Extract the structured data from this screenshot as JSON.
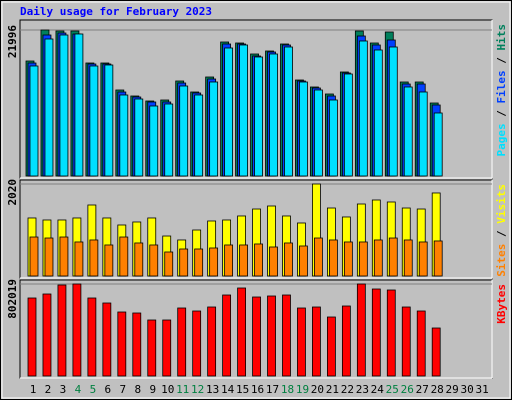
{
  "title": "Daily usage for February 2023",
  "chart_data": [
    {
      "type": "bar",
      "legend_separator": " / ",
      "series": [
        {
          "name": "Pages",
          "color": "#00e0ff",
          "values": [
            16573,
            20640,
            21243,
            21394,
            16573,
            16723,
            12204,
            11601,
            10546,
            10848,
            13559,
            12204,
            14162,
            19285,
            19737,
            17929,
            18381,
            19435,
            14162,
            12957,
            11450,
            15367,
            20339,
            18983,
            19435,
            13409,
            12655,
            9492,
            null,
            null,
            null
          ]
        },
        {
          "name": "Files",
          "color": "#0040ff",
          "values": [
            17025,
            21243,
            21544,
            21394,
            16874,
            16874,
            12655,
            11902,
            11149,
            11149,
            14011,
            12505,
            14614,
            19887,
            19887,
            18079,
            18682,
            19737,
            14313,
            13258,
            12053,
            15518,
            21092,
            19737,
            20490,
            13861,
            13861,
            10697,
            null,
            null,
            null
          ]
        },
        {
          "name": "Hits",
          "color": "#00805c",
          "values": [
            17326,
            21996,
            21846,
            21846,
            17025,
            17025,
            12957,
            12053,
            11300,
            11450,
            14313,
            12655,
            14915,
            20188,
            20038,
            18381,
            18833,
            19887,
            14463,
            13409,
            12354,
            15669,
            21846,
            20038,
            21695,
            14162,
            14162,
            10998,
            null,
            null,
            null
          ]
        }
      ],
      "ylim": [
        0,
        21996
      ],
      "yticks": [
        21996
      ]
    },
    {
      "type": "bar",
      "legend_separator": " / ",
      "series": [
        {
          "name": "Sites",
          "color": "#ff8000",
          "values": [
            856,
            834,
            856,
            747,
            791,
            681,
            856,
            725,
            681,
            527,
            593,
            593,
            615,
            681,
            681,
            703,
            637,
            725,
            659,
            834,
            791,
            747,
            747,
            791,
            834,
            791,
            747,
            769,
            null,
            null,
            null
          ]
        },
        {
          "name": "Visits",
          "color": "#ffff00",
          "values": [
            1274,
            1230,
            1230,
            1274,
            1559,
            1274,
            1120,
            1186,
            1274,
            878,
            791,
            1010,
            1208,
            1230,
            1318,
            1471,
            1537,
            1318,
            1164,
            2020,
            1493,
            1296,
            1581,
            1669,
            1625,
            1493,
            1471,
            1823,
            null,
            null,
            null
          ]
        }
      ],
      "ylim": [
        0,
        2020
      ],
      "yticks": [
        2020
      ]
    },
    {
      "type": "bar",
      "series": [
        {
          "name": "KBytes",
          "color": "#ff0000",
          "values": [
            679973,
            714843,
            793302,
            802019,
            679973,
            636385,
            557926,
            549209,
            488186,
            488186,
            592797,
            566644,
            601514,
            706126,
            767149,
            688690,
            697408,
            706126,
            592797,
            601514,
            514338,
            610232,
            802019,
            758431,
            749714,
            601514,
            566644,
            418445,
            null,
            null,
            null
          ]
        }
      ],
      "ylim": [
        0,
        802019
      ],
      "yticks": [
        802019
      ],
      "categories": [
        "1",
        "2",
        "3",
        "4",
        "5",
        "6",
        "7",
        "8",
        "9",
        "10",
        "11",
        "12",
        "13",
        "14",
        "15",
        "16",
        "17",
        "18",
        "19",
        "20",
        "21",
        "22",
        "23",
        "24",
        "25",
        "26",
        "27",
        "28",
        "29",
        "30",
        "31"
      ],
      "category_colors": [
        "#000000",
        "#000000",
        "#000000",
        "#008040",
        "#008040",
        "#000000",
        "#000000",
        "#000000",
        "#000000",
        "#000000",
        "#008040",
        "#008040",
        "#000000",
        "#000000",
        "#000000",
        "#000000",
        "#000000",
        "#008040",
        "#008040",
        "#000000",
        "#000000",
        "#000000",
        "#000000",
        "#000000",
        "#008040",
        "#008040",
        "#000000",
        "#000000",
        "#000000",
        "#000000",
        "#000000"
      ]
    }
  ]
}
